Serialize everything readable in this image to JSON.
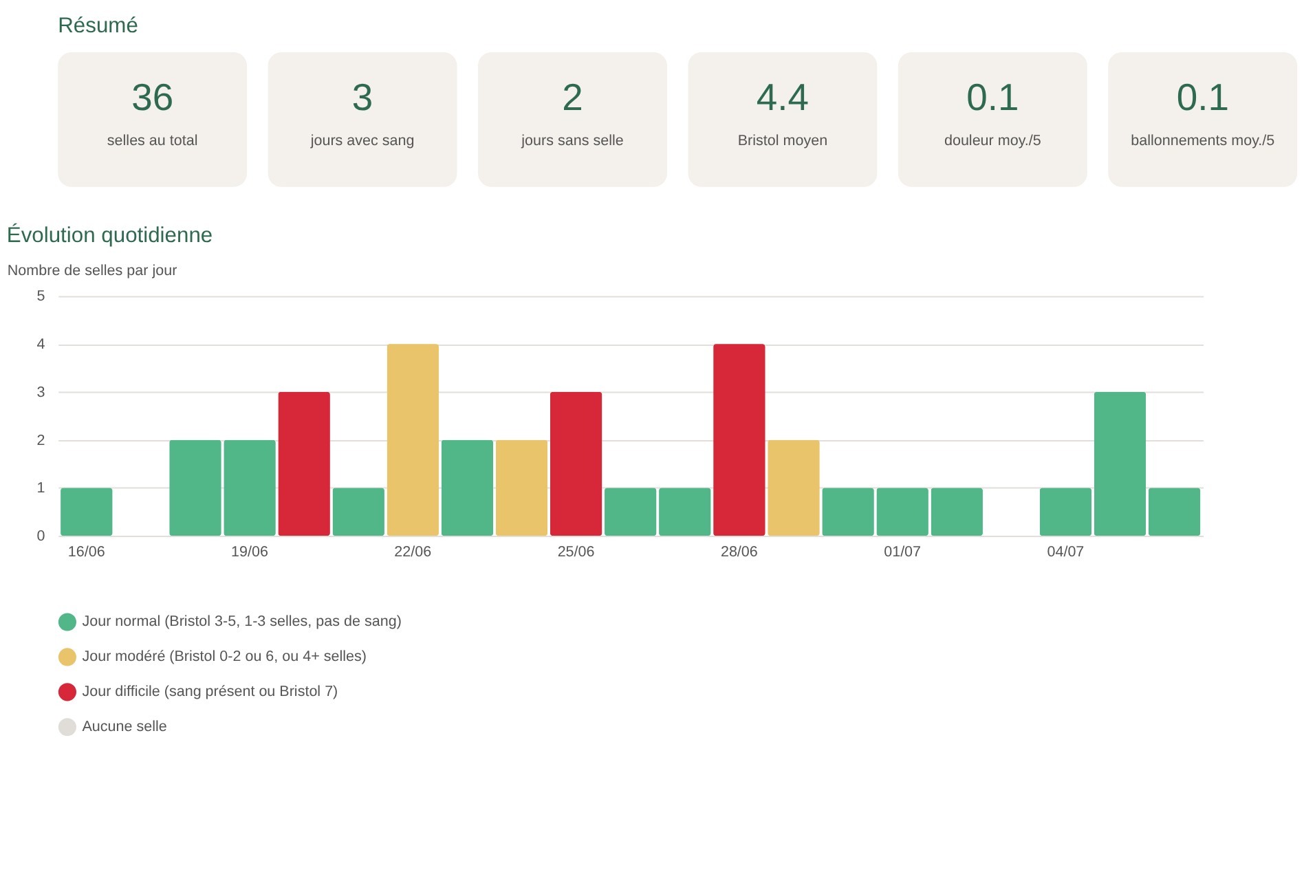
{
  "chart_data": [
    {
      "type": "other",
      "title": "Résumé",
      "annotations": [
        "36",
        "selles au total",
        "3",
        "jours avec sang",
        "2",
        "jours sans selle",
        "4.4",
        "Bristol moyen",
        "0.1",
        "douleur moy./5",
        "0.1",
        "ballonnements moy./5"
      ]
    },
    {
      "type": "bar",
      "title": "Évolution quotidienne",
      "ylabel": "Nombre de selles par jour",
      "categories": [
        "16/06",
        null,
        null,
        "19/06",
        null,
        null,
        "22/06",
        null,
        null,
        "25/06",
        null,
        null,
        "28/06",
        null,
        null,
        "01/07",
        null,
        null,
        "04/07",
        null,
        null
      ],
      "series": [
        {
          "name": "Jour normal (Bristol 3-5, 1-3 selles, pas de sang)",
          "color": "#52b788",
          "values": [
            1,
            null,
            2,
            2,
            null,
            1,
            null,
            2,
            null,
            null,
            1,
            1,
            null,
            null,
            1,
            1,
            1,
            null,
            1,
            3,
            1
          ]
        },
        {
          "name": "Jour modéré (Bristol 0-2 ou 6, ou 4+ selles)",
          "color": "#e9c46a",
          "values": [
            null,
            null,
            null,
            null,
            null,
            null,
            4,
            null,
            2,
            null,
            null,
            null,
            null,
            2,
            null,
            null,
            null,
            null,
            null,
            null,
            null
          ]
        },
        {
          "name": "Jour difficile (sang présent ou Bristol 7)",
          "color": "#d62839",
          "values": [
            null,
            null,
            null,
            null,
            3,
            null,
            null,
            null,
            null,
            3,
            null,
            null,
            4,
            null,
            null,
            null,
            null,
            null,
            null,
            null,
            null
          ]
        },
        {
          "name": "Aucune selle",
          "color": "#e0ddd8",
          "values": [
            null,
            0,
            null,
            null,
            null,
            null,
            null,
            null,
            null,
            null,
            null,
            null,
            null,
            null,
            null,
            null,
            null,
            0,
            null,
            null,
            null
          ]
        }
      ],
      "ylim": [
        0,
        5
      ],
      "yticks": [
        0,
        1,
        2,
        3,
        4,
        5
      ],
      "grid": "y",
      "legend": "bottom"
    }
  ]
}
